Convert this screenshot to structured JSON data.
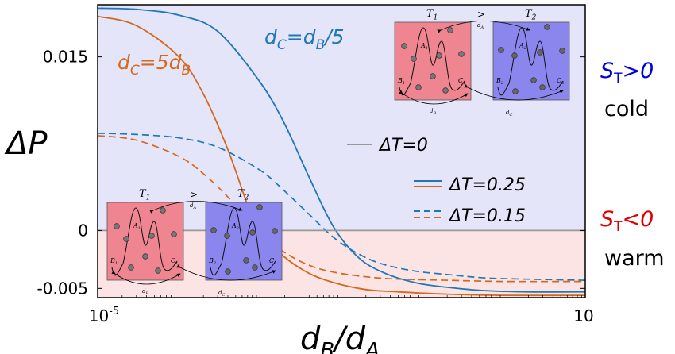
{
  "chart_data": {
    "type": "line",
    "xlabel": {
      "base": "d",
      "sub1": "B",
      "sep": "/",
      "base2": "d",
      "sub2": "A"
    },
    "ylabel": "ΔP",
    "xscale": "log",
    "xlim": [
      1e-05,
      10
    ],
    "ylim": [
      -0.0058,
      0.0195
    ],
    "x_ticks": [
      {
        "base": "10",
        "exp": "-5",
        "value": 1e-05
      },
      {
        "base": "10",
        "exp": "",
        "value": 10
      }
    ],
    "y_ticks": [
      {
        "label": "0.015",
        "value": 0.015
      },
      {
        "label": "0",
        "value": 0
      },
      {
        "label": "-0.005",
        "value": -0.005
      }
    ],
    "regions": [
      {
        "name": "cold",
        "y_from": 0,
        "y_to": 0.0195,
        "color": "#e5e5fa"
      },
      {
        "name": "warm",
        "y_from": -0.0058,
        "y_to": 0,
        "color": "#fce4e4"
      }
    ],
    "series": [
      {
        "label": "dC=dB/5, ΔT=0.25",
        "color": "#1f77b4",
        "dash": "solid",
        "x": [
          1e-05,
          3e-05,
          0.0001,
          0.0003,
          0.001,
          0.002,
          0.004,
          0.008,
          0.016,
          0.032,
          0.08,
          0.2,
          0.6,
          2,
          10
        ],
        "y": [
          0.0192,
          0.0191,
          0.0186,
          0.0172,
          0.0128,
          0.0092,
          0.0046,
          0.0003,
          -0.0023,
          -0.0036,
          -0.0045,
          -0.0049,
          -0.0052,
          -0.0053,
          -0.0053
        ]
      },
      {
        "label": "dC=5dB, ΔT=0.25",
        "color": "#d2691e",
        "dash": "solid",
        "x": [
          1e-05,
          3e-05,
          0.0001,
          0.0002,
          0.0004,
          0.0007,
          0.001,
          0.002,
          0.004,
          0.008,
          0.02,
          0.05,
          0.2,
          1,
          10
        ],
        "y": [
          0.0185,
          0.0177,
          0.015,
          0.0118,
          0.007,
          0.0022,
          -0.0002,
          -0.0023,
          -0.0037,
          -0.0045,
          -0.0051,
          -0.0053,
          -0.0055,
          -0.0056,
          -0.0056
        ]
      },
      {
        "label": "dC=dB/5, ΔT=0.15",
        "color": "#1f77b4",
        "dash": "dashed",
        "x": [
          1e-05,
          3e-05,
          0.0001,
          0.0003,
          0.001,
          0.002,
          0.004,
          0.008,
          0.016,
          0.032,
          0.08,
          0.2,
          0.6,
          2,
          10
        ],
        "y": [
          0.0084,
          0.0083,
          0.008,
          0.0072,
          0.0052,
          0.0034,
          0.0014,
          -0.0006,
          -0.002,
          -0.0029,
          -0.0035,
          -0.0038,
          -0.0041,
          -0.0042,
          -0.0043
        ]
      },
      {
        "label": "dC=5dB, ΔT=0.15",
        "color": "#d2691e",
        "dash": "dashed",
        "x": [
          1e-05,
          3e-05,
          0.0001,
          0.0002,
          0.0004,
          0.0007,
          0.001,
          0.002,
          0.004,
          0.008,
          0.02,
          0.05,
          0.2,
          1,
          10
        ],
        "y": [
          0.0082,
          0.0078,
          0.0064,
          0.0049,
          0.0029,
          0.0009,
          -0.0003,
          -0.0019,
          -0.003,
          -0.0036,
          -0.004,
          -0.0042,
          -0.0043,
          -0.0044,
          -0.0044
        ]
      },
      {
        "label": "ΔT=0",
        "color": "#999999",
        "dash": "solid",
        "x": [
          1e-05,
          10
        ],
        "y": [
          0,
          0
        ]
      }
    ],
    "annotations": [
      {
        "id": "blue",
        "parts": [
          [
            "d",
            "n"
          ],
          [
            "C",
            "s"
          ],
          [
            "=d",
            "n"
          ],
          [
            "B",
            "s"
          ],
          [
            "/5",
            "n"
          ]
        ],
        "color": "#1f77b4"
      },
      {
        "id": "orange",
        "parts": [
          [
            "d",
            "n"
          ],
          [
            "C",
            "s"
          ],
          [
            "=5d",
            "n"
          ],
          [
            "B",
            "s"
          ]
        ],
        "color": "#d2691e"
      }
    ],
    "legend": {
      "placement": "right-center",
      "items": [
        {
          "label": "ΔT=0",
          "color": "#999999",
          "dash": "solid"
        },
        {
          "label": "ΔT=0.25",
          "blue": "#1f77b4",
          "orange": "#d2691e",
          "dash": "solid"
        },
        {
          "label": "ΔT=0.15",
          "blue": "#1f77b4",
          "orange": "#d2691e",
          "dash": "dashed"
        }
      ]
    },
    "side_labels": [
      {
        "id": "cold",
        "s": "S",
        "sub": "T",
        "rel": ">0",
        "word": "cold",
        "color": "#0000dd"
      },
      {
        "id": "warm",
        "s": "S",
        "sub": "T",
        "rel": "<0",
        "word": "warm",
        "color": "#dd0000"
      }
    ],
    "insets": [
      {
        "id": "top",
        "T1": "T",
        "T1sub": "1",
        "T2": "T",
        "T2sub": "2",
        "gt": ">",
        "dA": "d",
        "dAsub": "A",
        "dB": "d",
        "dBsub": "B",
        "dC": "d",
        "dCsub": "C",
        "A1": "A",
        "A1sub": "1",
        "A2": "A",
        "A2sub": "2",
        "B1": "B",
        "B1sub": "1",
        "B2": "B",
        "B2sub": "2",
        "C1": "C",
        "C1sub": "1",
        "C2": "C",
        "C2sub": "2",
        "box1_color": "#ee8590",
        "box2_color": "#8a86ee"
      },
      {
        "id": "bottom",
        "T1": "T",
        "T1sub": "1",
        "T2": "T",
        "T2sub": "2",
        "gt": ">",
        "dA": "d",
        "dAsub": "A",
        "dB": "d",
        "dBsub": "B",
        "dC": "d",
        "dCsub": "C",
        "A1": "A",
        "A1sub": "1",
        "A2": "A",
        "A2sub": "2",
        "B1": "B",
        "B1sub": "1",
        "B2": "B",
        "B2sub": "2",
        "C1": "C",
        "C1sub": "1",
        "C2": "C",
        "C2sub": "2",
        "box1_color": "#ee8590",
        "box2_color": "#8a86ee"
      }
    ]
  }
}
